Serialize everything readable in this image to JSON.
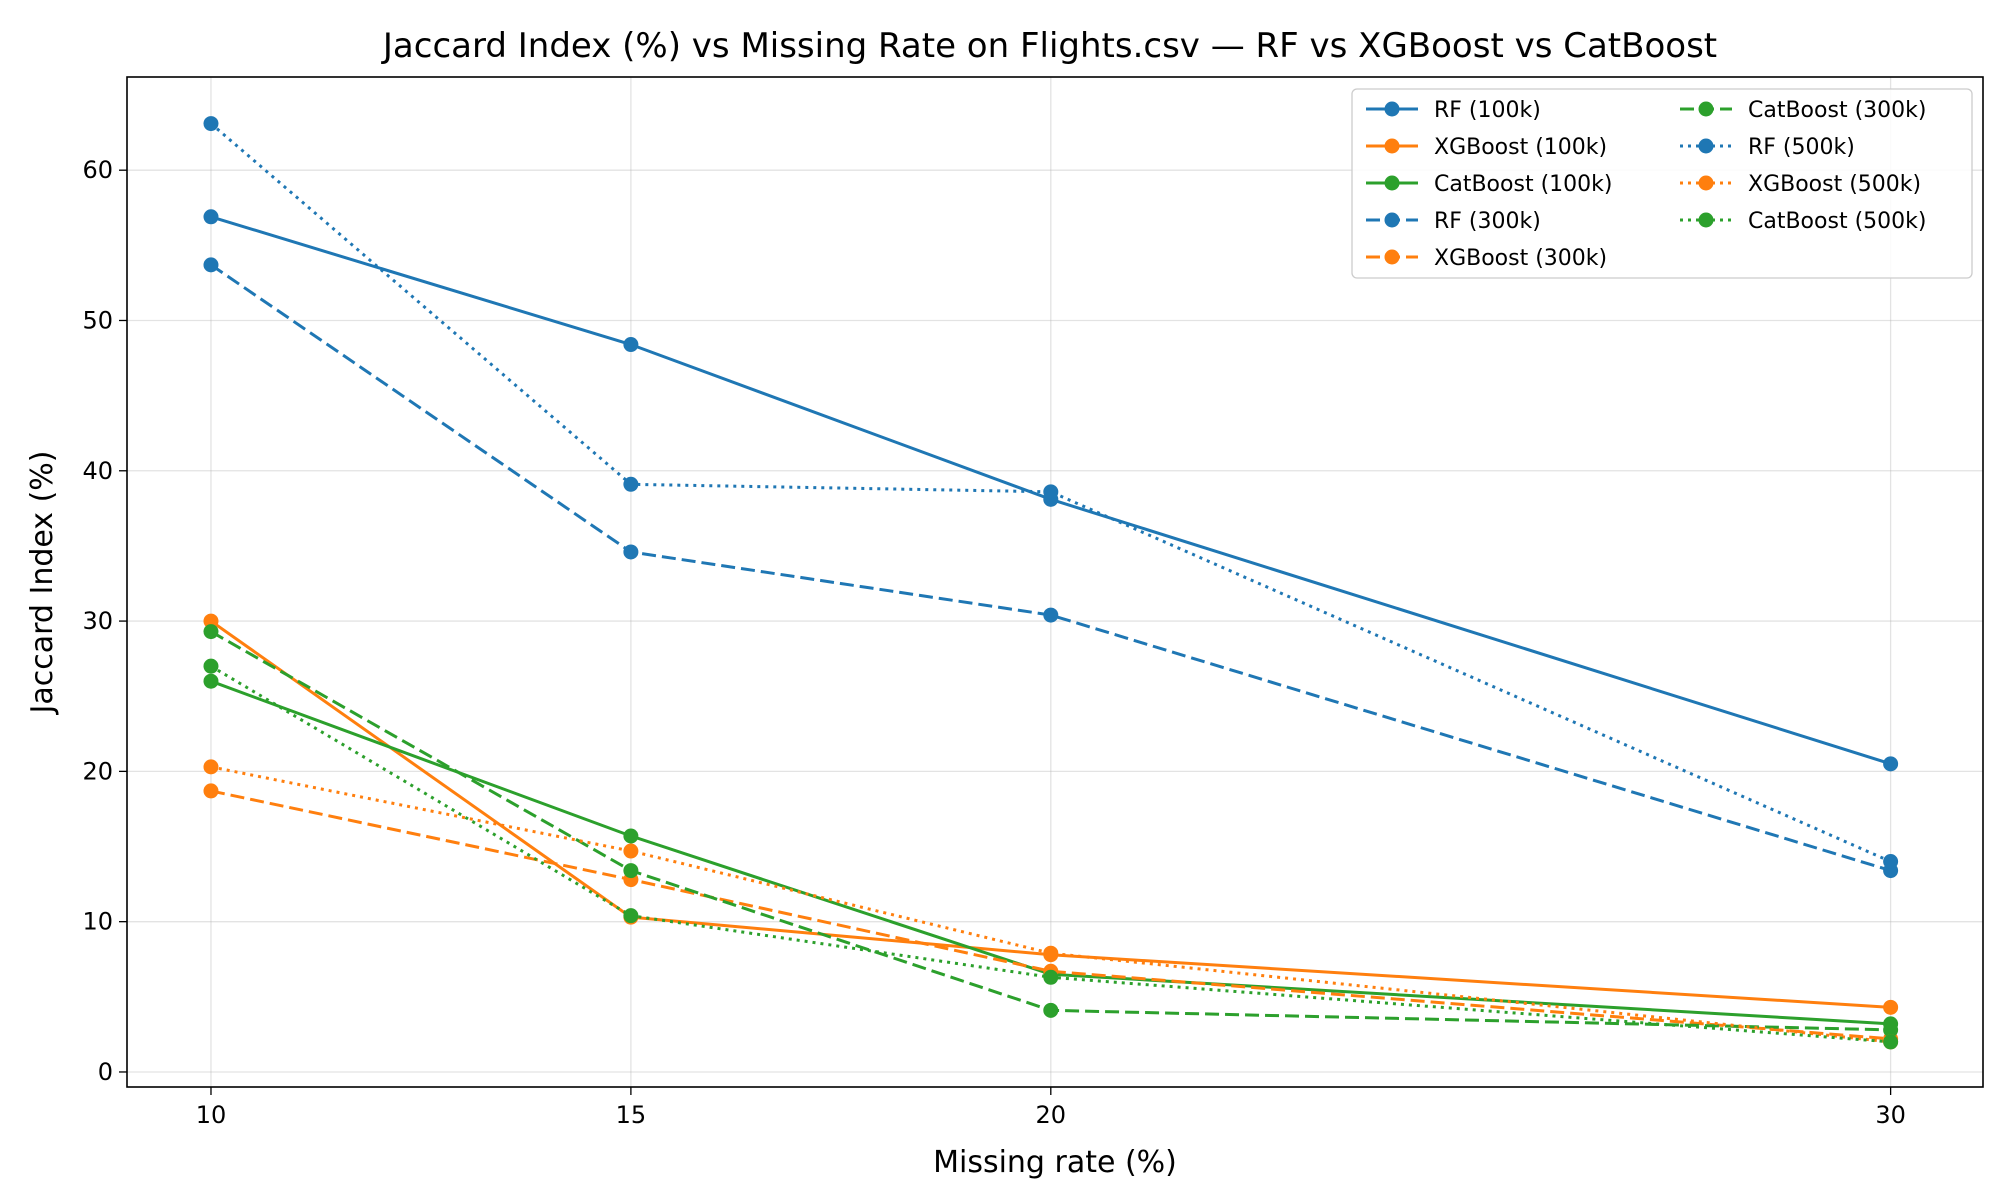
{
  "chart_data": {
    "type": "line",
    "title": "Jaccard Index (%) vs Missing Rate on Flights.csv — RF vs XGBoost vs CatBoost",
    "xlabel": "Missing rate (%)",
    "ylabel": "Jaccard Index (%)",
    "x": [
      10,
      15,
      20,
      30
    ],
    "xticks": [
      10,
      15,
      20,
      30
    ],
    "yticks": [
      0,
      10,
      20,
      30,
      40,
      50,
      60
    ],
    "xlim": [
      9,
      31.1
    ],
    "ylim": [
      -1,
      66.2
    ],
    "grid": true,
    "legend_position": "top-right",
    "legend_columns": 2,
    "colors": {
      "RF": "#1f77b4",
      "XGBoost": "#ff7f0e",
      "CatBoost": "#2ca02c"
    },
    "series": [
      {
        "name": "RF (100k)",
        "model": "RF",
        "style": "solid",
        "values": [
          56.9,
          48.4,
          38.1,
          20.5
        ]
      },
      {
        "name": "XGBoost (100k)",
        "model": "XGBoost",
        "style": "solid",
        "values": [
          30.0,
          10.3,
          7.8,
          4.3
        ]
      },
      {
        "name": "CatBoost (100k)",
        "model": "CatBoost",
        "style": "solid",
        "values": [
          26.0,
          15.7,
          6.5,
          3.2
        ]
      },
      {
        "name": "RF (300k)",
        "model": "RF",
        "style": "dashed",
        "values": [
          53.7,
          34.6,
          30.4,
          13.4
        ]
      },
      {
        "name": "XGBoost (300k)",
        "model": "XGBoost",
        "style": "dashed",
        "values": [
          18.7,
          12.8,
          6.7,
          2.2
        ]
      },
      {
        "name": "CatBoost (300k)",
        "model": "CatBoost",
        "style": "dashed",
        "values": [
          29.3,
          13.4,
          4.1,
          2.8
        ]
      },
      {
        "name": "RF (500k)",
        "model": "RF",
        "style": "dotted",
        "values": [
          63.1,
          39.1,
          38.6,
          14.0
        ]
      },
      {
        "name": "XGBoost (500k)",
        "model": "XGBoost",
        "style": "dotted",
        "values": [
          20.3,
          14.7,
          7.9,
          2.0
        ]
      },
      {
        "name": "CatBoost (500k)",
        "model": "CatBoost",
        "style": "dotted",
        "values": [
          27.0,
          10.4,
          6.3,
          2.0
        ]
      }
    ]
  }
}
